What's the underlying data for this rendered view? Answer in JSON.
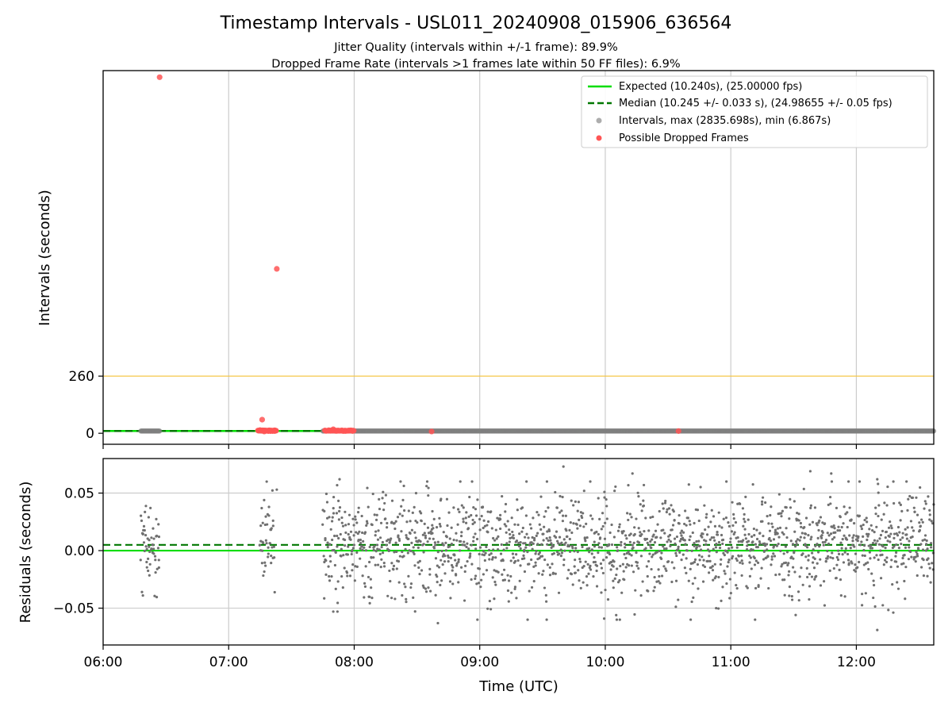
{
  "figure": {
    "title": "Timestamp Intervals - USL011_20240908_015906_636564",
    "subtitle_1": "Jitter Quality (intervals within +/-1 frame): 89.9%",
    "subtitle_2": "Dropped Frame Rate (intervals >1 frames late within 50 FF files): 6.9%"
  },
  "chart_data": [
    {
      "type": "scatter",
      "panel": "intervals",
      "title": "",
      "xlabel": "",
      "ylabel": "Intervals (seconds)",
      "xlim": [
        "06:00",
        "12:37"
      ],
      "ylim": [
        -50,
        1650
      ],
      "y_ticks": [
        0,
        260
      ],
      "y_tick_labels": [
        "0",
        "260"
      ],
      "grid_x": true,
      "legend_position": "top-right",
      "threshold_line": {
        "y": 260,
        "color": "#f5c542"
      },
      "series": [
        {
          "name": "Expected (10.240s), (25.00000 fps)",
          "kind": "line",
          "y": 10.24,
          "color": "#00dd00",
          "style": "solid"
        },
        {
          "name": "Median (10.245 +/- 0.033 s), (24.98655 +/- 0.05 fps)",
          "kind": "line",
          "y": 10.245,
          "color": "#007700",
          "style": "dashed"
        },
        {
          "name": "Intervals, max (2835.698s), min (6.867s)",
          "kind": "scatter",
          "color": "#808080",
          "segments": [
            [
              "06:18",
              "06:27"
            ],
            [
              "07:15",
              "07:22"
            ],
            [
              "07:45",
              "12:37"
            ]
          ],
          "y": 10.24
        },
        {
          "name": "Possible Dropped Frames",
          "kind": "scatter",
          "color": "#ff5555",
          "points": [
            {
              "x": "06:27",
              "y": 1620
            },
            {
              "x": "07:23",
              "y": 748
            },
            {
              "x": "07:16",
              "y": 62
            },
            {
              "x": "07:15",
              "y": 14
            },
            {
              "x": "07:17",
              "y": 8
            },
            {
              "x": "07:19",
              "y": 10
            },
            {
              "x": "07:20",
              "y": 10
            },
            {
              "x": "07:21",
              "y": 10
            },
            {
              "x": "07:22",
              "y": 10
            },
            {
              "x": "07:50",
              "y": 18
            },
            {
              "x": "08:37",
              "y": 8
            },
            {
              "x": "10:35",
              "y": 10
            }
          ],
          "dense_ranges": [
            [
              "07:14",
              "07:23"
            ],
            [
              "07:46",
              "08:00"
            ]
          ]
        }
      ]
    },
    {
      "type": "scatter",
      "panel": "residuals",
      "title": "",
      "xlabel": "Time (UTC)",
      "ylabel": "Residuals (seconds)",
      "xlim": [
        "06:00",
        "12:37"
      ],
      "ylim": [
        -0.082,
        0.08
      ],
      "y_ticks": [
        0.05,
        0.0,
        -0.05
      ],
      "y_tick_labels": [
        "0.05",
        "0.00",
        "−0.05"
      ],
      "x_ticks": [
        "06:00",
        "07:00",
        "08:00",
        "09:00",
        "10:00",
        "11:00",
        "12:00"
      ],
      "grid": true,
      "series": [
        {
          "name": "Expected",
          "kind": "line",
          "y": 0.0,
          "color": "#00dd00",
          "style": "solid"
        },
        {
          "name": "Median",
          "kind": "line",
          "y": 0.005,
          "color": "#007700",
          "style": "dashed"
        },
        {
          "name": "Residuals",
          "kind": "scatter",
          "color": "#707070",
          "segments": [
            [
              "06:18",
              "06:27"
            ],
            [
              "07:15",
              "07:22"
            ],
            [
              "07:45",
              "12:37"
            ]
          ],
          "spread_sd": 0.022,
          "center": 0.005,
          "notable_points": [
            {
              "x": "06:19",
              "y": -0.039
            },
            {
              "x": "07:23",
              "y": 0.053
            },
            {
              "x": "07:50",
              "y": -0.053
            },
            {
              "x": "07:52",
              "y": -0.053
            },
            {
              "x": "07:53",
              "y": 0.062
            },
            {
              "x": "08:40",
              "y": -0.063
            },
            {
              "x": "09:32",
              "y": -0.06
            },
            {
              "x": "09:40",
              "y": 0.073
            },
            {
              "x": "10:13",
              "y": 0.067
            },
            {
              "x": "10:53",
              "y": -0.05
            },
            {
              "x": "11:31",
              "y": -0.056
            },
            {
              "x": "11:38",
              "y": 0.069
            },
            {
              "x": "11:48",
              "y": 0.067
            },
            {
              "x": "12:10",
              "y": -0.069
            },
            {
              "x": "12:10",
              "y": 0.062
            }
          ]
        }
      ]
    }
  ]
}
